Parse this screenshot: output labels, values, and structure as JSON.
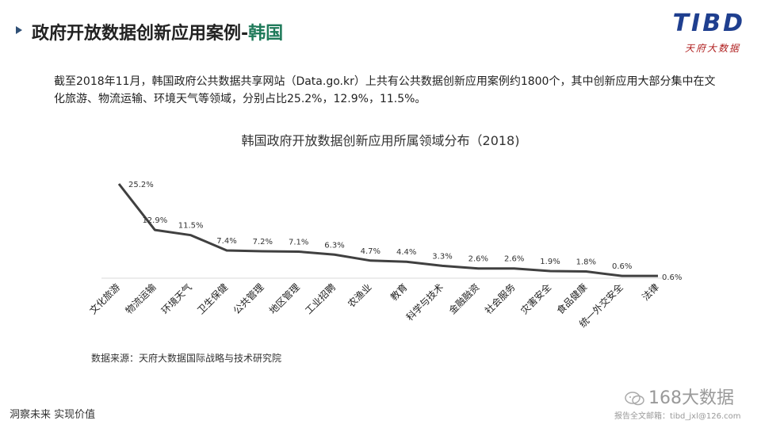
{
  "header": {
    "title_main": "政府开放数据创新应用案例-",
    "title_highlight": "韩国"
  },
  "logo": {
    "main": "TIBD",
    "sub": "天府大数据"
  },
  "description": "截至2018年11月，韩国政府公共数据共享网站（Data.go.kr）上共有公共数据创新应用案例约1800个，其中创新应用大部分集中在文化旅游、物流运输、环境天气等领域，分别占比25.2%，12.9%，11.5%。",
  "chart_data": {
    "type": "line",
    "title": "韩国政府开放数据创新应用所属领域分布（2018)",
    "categories": [
      "文化旅游",
      "物流运输",
      "环境天气",
      "卫生保健",
      "公共管理",
      "地区管理",
      "工业招聘",
      "农渔业",
      "教育",
      "科学与技术",
      "金融融资",
      "社会服务",
      "灾害安全",
      "食品健康",
      "统一外交安全",
      "法律"
    ],
    "series": [
      {
        "values": [
          25.2,
          12.9,
          11.5,
          7.4,
          7.2,
          7.1,
          6.3,
          4.7,
          4.4,
          3.3,
          2.6,
          2.6,
          1.9,
          1.8,
          0.6,
          0.6
        ]
      }
    ],
    "value_labels": [
      "25.2%",
      "12.9%",
      "11.5%",
      "7.4%",
      "7.2%",
      "7.1%",
      "6.3%",
      "4.7%",
      "4.4%",
      "3.3%",
      "2.6%",
      "2.6%",
      "1.9%",
      "1.8%",
      "0.6%",
      "0.6%"
    ],
    "xlabel": "",
    "ylabel": "",
    "ylim": [
      0,
      25.2
    ],
    "grid": false,
    "legend": "none",
    "line_color": "#404040"
  },
  "source": "数据来源：天府大数据国际战略与技术研究院",
  "footer": {
    "motto": "洞察未来 实现价值",
    "watermark": "168大数据",
    "email": "报告全文邮箱：tibd_jxl@126.com"
  },
  "colors": {
    "accent": "#1f7a5a",
    "logo_blue": "#1f3f8f",
    "logo_red": "#b02020",
    "bullet": "#2f4f75"
  }
}
